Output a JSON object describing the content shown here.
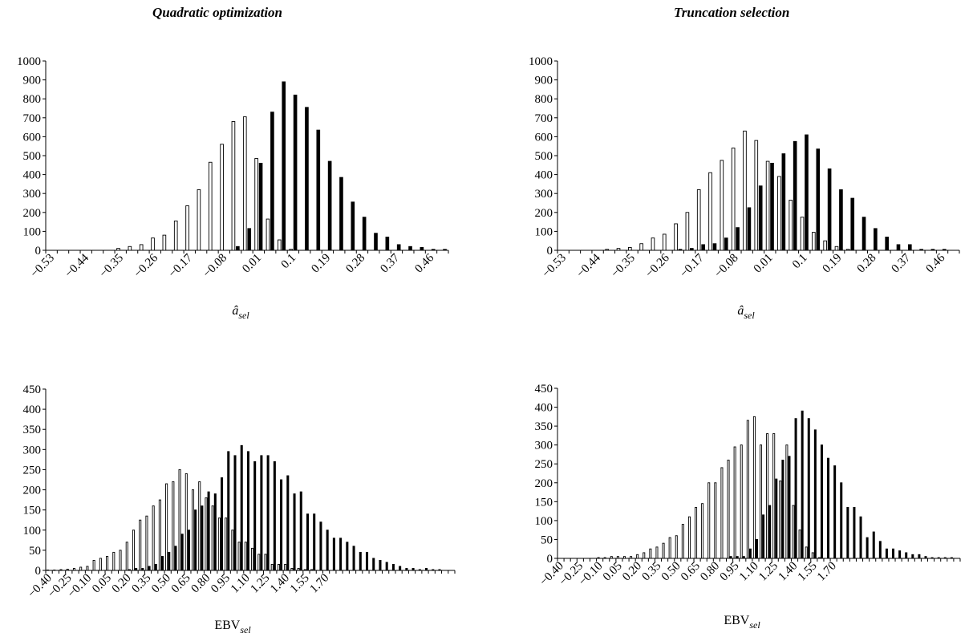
{
  "titles": {
    "left": "Quadratic optimization",
    "right": "Truncation selection"
  },
  "chart_data": [
    {
      "id": "top-left",
      "type": "bar",
      "xlabel_main": "â",
      "xlabel_sub": "sel",
      "ylim": [
        0,
        1000
      ],
      "yticks": [
        0,
        100,
        200,
        300,
        400,
        500,
        600,
        700,
        800,
        900,
        1000
      ],
      "categories": [
        -0.53,
        -0.5,
        -0.47,
        -0.44,
        -0.41,
        -0.38,
        -0.35,
        -0.32,
        -0.29,
        -0.26,
        -0.23,
        -0.2,
        -0.17,
        -0.14,
        -0.11,
        -0.08,
        -0.05,
        -0.02,
        0.01,
        0.04,
        0.07,
        0.1,
        0.13,
        0.16,
        0.19,
        0.22,
        0.25,
        0.28,
        0.31,
        0.34,
        0.37,
        0.4,
        0.43,
        0.46,
        0.49
      ],
      "xtick_labels": [
        "−0.53",
        "",
        "",
        "−0.44",
        "",
        "",
        "−0.35",
        "",
        "",
        "−0.26",
        "",
        "",
        "−0.17",
        "",
        "",
        "−0.08",
        "",
        "",
        "0.01",
        "",
        "",
        "0.1",
        "",
        "",
        "0.19",
        "",
        "",
        "0.28",
        "",
        "",
        "0.37",
        "",
        "",
        "0.46",
        ""
      ],
      "series": [
        {
          "fill": "#ffffff",
          "values": [
            0,
            0,
            0,
            0,
            0,
            0,
            10,
            20,
            30,
            65,
            80,
            155,
            235,
            320,
            465,
            560,
            680,
            705,
            485,
            165,
            55,
            5,
            0,
            0,
            0,
            0,
            0,
            0,
            0,
            0,
            0,
            0,
            0,
            0,
            0
          ]
        },
        {
          "fill": "#000000",
          "values": [
            0,
            0,
            0,
            0,
            0,
            0,
            0,
            0,
            0,
            0,
            0,
            0,
            0,
            0,
            0,
            0,
            20,
            115,
            460,
            730,
            890,
            820,
            755,
            635,
            470,
            385,
            255,
            175,
            90,
            70,
            30,
            20,
            15,
            5,
            5
          ]
        }
      ]
    },
    {
      "id": "top-right",
      "type": "bar",
      "xlabel_main": "â",
      "xlabel_sub": "sel",
      "ylim": [
        0,
        1000
      ],
      "yticks": [
        0,
        100,
        200,
        300,
        400,
        500,
        600,
        700,
        800,
        900,
        1000
      ],
      "categories": [
        -0.53,
        -0.5,
        -0.47,
        -0.44,
        -0.41,
        -0.38,
        -0.35,
        -0.32,
        -0.29,
        -0.26,
        -0.23,
        -0.2,
        -0.17,
        -0.14,
        -0.11,
        -0.08,
        -0.05,
        -0.02,
        0.01,
        0.04,
        0.07,
        0.1,
        0.13,
        0.16,
        0.19,
        0.22,
        0.25,
        0.28,
        0.31,
        0.34,
        0.37,
        0.4,
        0.43,
        0.46,
        0.49
      ],
      "xtick_labels": [
        "−0.53",
        "",
        "",
        "−0.44",
        "",
        "",
        "−0.35",
        "",
        "",
        "−0.26",
        "",
        "",
        "−0.17",
        "",
        "",
        "−0.08",
        "",
        "",
        "0.01",
        "",
        "",
        "0.1",
        "",
        "",
        "0.19",
        "",
        "",
        "0.28",
        "",
        "",
        "0.37",
        "",
        "",
        "0.46",
        ""
      ],
      "series": [
        {
          "fill": "#ffffff",
          "values": [
            0,
            0,
            0,
            0,
            5,
            10,
            15,
            35,
            65,
            85,
            140,
            200,
            320,
            410,
            475,
            540,
            630,
            580,
            470,
            390,
            265,
            175,
            95,
            50,
            20,
            5,
            0,
            0,
            0,
            0,
            0,
            0,
            0,
            0,
            0
          ]
        },
        {
          "fill": "#000000",
          "values": [
            0,
            0,
            0,
            0,
            0,
            0,
            0,
            0,
            0,
            0,
            5,
            10,
            30,
            35,
            65,
            120,
            225,
            340,
            460,
            510,
            575,
            610,
            535,
            430,
            320,
            275,
            175,
            115,
            70,
            30,
            30,
            5,
            5,
            5,
            0
          ]
        }
      ]
    },
    {
      "id": "bottom-left",
      "type": "bar",
      "xlabel_main": "EBV",
      "xlabel_sub": "sel",
      "ylim": [
        0,
        450
      ],
      "yticks": [
        0,
        50,
        100,
        150,
        200,
        250,
        300,
        350,
        400,
        450
      ],
      "categories": [
        -0.4,
        -0.35,
        -0.3,
        -0.25,
        -0.2,
        -0.15,
        -0.1,
        -0.05,
        0,
        0.05,
        0.1,
        0.15,
        0.2,
        0.25,
        0.3,
        0.35,
        0.4,
        0.45,
        0.5,
        0.55,
        0.6,
        0.65,
        0.7,
        0.75,
        0.8,
        0.85,
        0.9,
        0.95,
        1.0,
        1.05,
        1.1,
        1.15,
        1.2,
        1.25,
        1.3,
        1.35,
        1.4,
        1.45,
        1.5,
        1.55,
        1.6,
        1.65,
        1.7,
        1.75
      ],
      "xtick_labels": [
        "−0.40",
        "",
        "",
        "−0.25",
        "",
        "",
        "−0.10",
        "",
        "",
        "0.05",
        "",
        "",
        "0.20",
        "",
        "",
        "0.35",
        "",
        "",
        "0.50",
        "",
        "",
        "0.65",
        "",
        "",
        "0.80",
        "",
        "",
        "0.95",
        "",
        "",
        "1.10",
        "",
        "",
        "1.25",
        "",
        "",
        "1.40",
        "",
        "",
        "1.55",
        "",
        "",
        "1.70",
        ""
      ],
      "series": [
        {
          "fill": "#ffffff",
          "values": [
            0,
            0,
            0,
            0,
            0,
            0,
            0,
            0,
            0,
            0,
            0,
            0,
            0,
            0,
            0,
            0,
            0,
            0,
            0,
            0,
            0,
            0,
            0,
            0,
            0,
            0,
            0,
            0,
            0,
            0,
            0,
            0,
            0,
            0,
            0,
            0,
            0,
            0,
            0,
            0,
            0,
            0,
            0,
            0
          ]
        },
        {
          "fill": "#000000",
          "values": [
            0,
            0,
            0,
            0,
            0,
            0,
            0,
            0,
            0,
            0,
            0,
            0,
            0,
            0,
            0,
            0,
            0,
            0,
            0,
            0,
            0,
            0,
            0,
            0,
            0,
            0,
            0,
            0,
            0,
            0,
            0,
            0,
            0,
            0,
            0,
            0,
            0,
            0,
            0,
            0,
            0,
            0,
            0,
            0
          ]
        }
      ],
      "paired_bars": [
        [
          0,
          1,
          0
        ],
        [
          1,
          1,
          0
        ],
        [
          2,
          2,
          0
        ],
        [
          3,
          3,
          0
        ],
        [
          4,
          5,
          0
        ],
        [
          5,
          8,
          0
        ],
        [
          6,
          10,
          0
        ],
        [
          7,
          25,
          0
        ],
        [
          8,
          30,
          0
        ],
        [
          9,
          35,
          0
        ],
        [
          10,
          45,
          0
        ],
        [
          11,
          50,
          0
        ],
        [
          12,
          70,
          2
        ],
        [
          13,
          100,
          5
        ],
        [
          14,
          125,
          5
        ],
        [
          15,
          135,
          10
        ],
        [
          16,
          160,
          15
        ],
        [
          17,
          175,
          35
        ],
        [
          18,
          215,
          45
        ],
        [
          19,
          220,
          60
        ],
        [
          20,
          250,
          90
        ],
        [
          21,
          240,
          100
        ],
        [
          22,
          200,
          150
        ],
        [
          23,
          220,
          160
        ],
        [
          24,
          180,
          195
        ],
        [
          25,
          160,
          190
        ],
        [
          26,
          130,
          230
        ],
        [
          27,
          130,
          295
        ],
        [
          28,
          100,
          285
        ],
        [
          29,
          70,
          310
        ],
        [
          30,
          70,
          295
        ],
        [
          31,
          55,
          270
        ],
        [
          32,
          40,
          285
        ],
        [
          33,
          40,
          285
        ],
        [
          34,
          15,
          270
        ],
        [
          35,
          15,
          225
        ],
        [
          36,
          15,
          235
        ],
        [
          37,
          5,
          190
        ],
        [
          38,
          5,
          195
        ],
        [
          39,
          2,
          140
        ],
        [
          40,
          2,
          140
        ],
        [
          41,
          0,
          120
        ],
        [
          42,
          0,
          100
        ],
        [
          43,
          0,
          80
        ],
        [
          44,
          0,
          80
        ],
        [
          45,
          0,
          70
        ],
        [
          46,
          0,
          60
        ],
        [
          47,
          0,
          45
        ],
        [
          48,
          0,
          45
        ],
        [
          49,
          0,
          30
        ],
        [
          50,
          0,
          25
        ],
        [
          51,
          0,
          20
        ],
        [
          52,
          0,
          15
        ],
        [
          53,
          0,
          10
        ],
        [
          54,
          0,
          5
        ],
        [
          55,
          0,
          5
        ],
        [
          56,
          0,
          2
        ],
        [
          57,
          0,
          5
        ],
        [
          58,
          0,
          2
        ],
        [
          59,
          0,
          2
        ],
        [
          60,
          0,
          0
        ],
        [
          61,
          0,
          0
        ]
      ]
    },
    {
      "id": "bottom-right",
      "type": "bar",
      "xlabel_main": "EBV",
      "xlabel_sub": "sel",
      "ylim": [
        0,
        450
      ],
      "yticks": [
        0,
        50,
        100,
        150,
        200,
        250,
        300,
        350,
        400,
        450
      ],
      "xtick_labels": [
        "−0.40",
        "",
        "",
        "−0.25",
        "",
        "",
        "−0.10",
        "",
        "",
        "0.05",
        "",
        "",
        "0.20",
        "",
        "",
        "0.35",
        "",
        "",
        "0.50",
        "",
        "",
        "0.65",
        "",
        "",
        "0.80",
        "",
        "",
        "0.95",
        "",
        "",
        "1.10",
        "",
        "",
        "1.25",
        "",
        "",
        "1.40",
        "",
        "",
        "1.55",
        "",
        "",
        "1.70",
        ""
      ],
      "paired_bars": [
        [
          0,
          0,
          0
        ],
        [
          1,
          0,
          0
        ],
        [
          2,
          0,
          0
        ],
        [
          3,
          0,
          0
        ],
        [
          4,
          0,
          0
        ],
        [
          5,
          0,
          0
        ],
        [
          6,
          2,
          0
        ],
        [
          7,
          2,
          0
        ],
        [
          8,
          5,
          0
        ],
        [
          9,
          5,
          0
        ],
        [
          10,
          5,
          0
        ],
        [
          11,
          5,
          0
        ],
        [
          12,
          10,
          0
        ],
        [
          13,
          15,
          0
        ],
        [
          14,
          25,
          0
        ],
        [
          15,
          30,
          0
        ],
        [
          16,
          40,
          0
        ],
        [
          17,
          55,
          0
        ],
        [
          18,
          60,
          0
        ],
        [
          19,
          90,
          0
        ],
        [
          20,
          110,
          0
        ],
        [
          21,
          135,
          0
        ],
        [
          22,
          145,
          0
        ],
        [
          23,
          200,
          0
        ],
        [
          24,
          200,
          0
        ],
        [
          25,
          240,
          0
        ],
        [
          26,
          260,
          5
        ],
        [
          27,
          295,
          5
        ],
        [
          28,
          300,
          5
        ],
        [
          29,
          365,
          25
        ],
        [
          30,
          375,
          50
        ],
        [
          31,
          300,
          115
        ],
        [
          32,
          330,
          140
        ],
        [
          33,
          330,
          210
        ],
        [
          34,
          205,
          260
        ],
        [
          35,
          300,
          270
        ],
        [
          36,
          140,
          370
        ],
        [
          37,
          75,
          390
        ],
        [
          38,
          30,
          370
        ],
        [
          39,
          15,
          340
        ],
        [
          40,
          2,
          300
        ],
        [
          41,
          0,
          265
        ],
        [
          42,
          0,
          245
        ],
        [
          43,
          0,
          200
        ],
        [
          44,
          0,
          135
        ],
        [
          45,
          0,
          135
        ],
        [
          46,
          0,
          110
        ],
        [
          47,
          0,
          55
        ],
        [
          48,
          0,
          70
        ],
        [
          49,
          0,
          45
        ],
        [
          50,
          0,
          25
        ],
        [
          51,
          0,
          25
        ],
        [
          52,
          0,
          20
        ],
        [
          53,
          0,
          15
        ],
        [
          54,
          0,
          10
        ],
        [
          55,
          0,
          10
        ],
        [
          56,
          0,
          5
        ],
        [
          57,
          0,
          2
        ],
        [
          58,
          0,
          2
        ],
        [
          59,
          0,
          2
        ],
        [
          60,
          0,
          2
        ],
        [
          61,
          0,
          0
        ]
      ]
    }
  ]
}
